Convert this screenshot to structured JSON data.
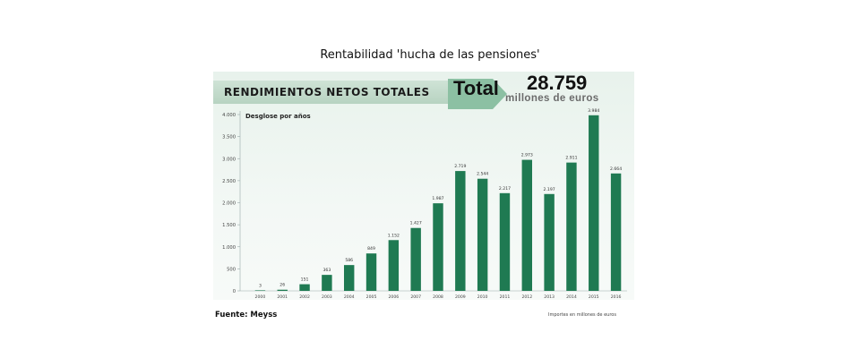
{
  "page_title": "Rentabilidad 'hucha de las pensiones'",
  "banner_title": "RENDIMIENTOS NETOS TOTALES",
  "total_label": "Total",
  "total_value": "28.759",
  "total_unit": "millones de euros",
  "subtitle": "Desglose por años",
  "source": "Fuente: Meyss",
  "note": "Importes en millones de euros",
  "colors": {
    "bar": "#1f7a52",
    "banner": "#b7d3c1",
    "arrow": "#8cc0a3"
  },
  "chart_data": {
    "type": "bar",
    "title": "RENDIMIENTOS NETOS TOTALES",
    "xlabel": "",
    "ylabel": "",
    "ylim": [
      0,
      4000
    ],
    "yticks": [
      0,
      500,
      1000,
      1500,
      2000,
      2500,
      3000,
      3500,
      4000
    ],
    "ytick_labels": [
      "0",
      "500",
      "1.000",
      "1.500",
      "2.000",
      "2.500",
      "3.000",
      "3.500",
      "4.000"
    ],
    "grid": false,
    "categories": [
      "2000",
      "2001",
      "2002",
      "2003",
      "2004",
      "2005",
      "2006",
      "2007",
      "2008",
      "2009",
      "2010",
      "2011",
      "2012",
      "2013",
      "2014",
      "2015",
      "2016"
    ],
    "values": [
      3,
      26,
      151,
      363,
      586,
      849,
      1152,
      1427,
      1987,
      2719,
      2544,
      2217,
      2973,
      2197,
      2911,
      3984,
      2664
    ],
    "value_labels": [
      "3",
      "26",
      "151",
      "363",
      "586",
      "849",
      "1.152",
      "1.427",
      "1.987",
      "2.719",
      "2.544",
      "2.217",
      "2.973",
      "2.197",
      "2.911",
      "3.984",
      "2.664"
    ]
  }
}
